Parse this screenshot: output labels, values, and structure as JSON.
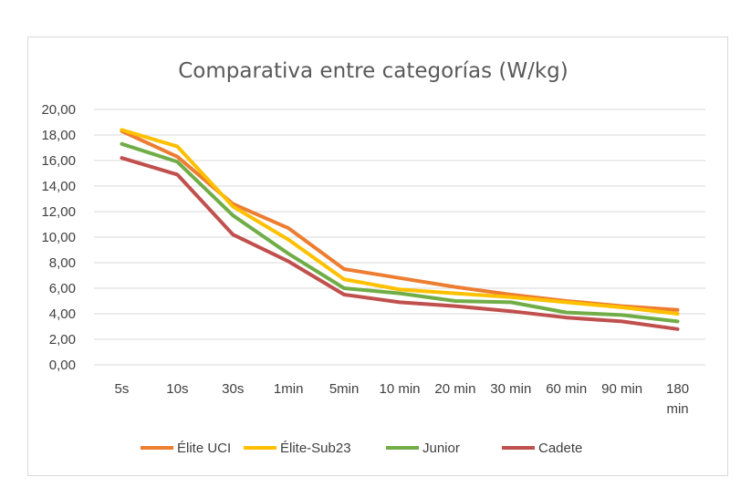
{
  "chart_data": {
    "type": "line",
    "title": "Comparativa entre categorías (W/kg)",
    "xlabel": "",
    "ylabel": "",
    "ylim": [
      0,
      20
    ],
    "y_step": 2,
    "y_tick_labels": [
      "0,00",
      "2,00",
      "4,00",
      "6,00",
      "8,00",
      "10,00",
      "12,00",
      "14,00",
      "16,00",
      "18,00",
      "20,00"
    ],
    "categories": [
      "5s",
      "10s",
      "30s",
      "1min",
      "5min",
      "10 min",
      "20 min",
      "30 min",
      "60 min",
      "90 min",
      "180 min"
    ],
    "grid": true,
    "legend_position": "bottom",
    "series": [
      {
        "name": "Élite UCI",
        "color": "#ED7D31",
        "values": [
          18.3,
          16.3,
          12.6,
          10.7,
          7.5,
          6.8,
          6.1,
          5.5,
          5.0,
          4.6,
          4.3
        ]
      },
      {
        "name": "Élite-Sub23",
        "color": "#FFC000",
        "values": [
          18.4,
          17.1,
          12.4,
          9.8,
          6.7,
          5.9,
          5.6,
          5.3,
          4.9,
          4.5,
          4.0
        ]
      },
      {
        "name": "Junior",
        "color": "#70AD47",
        "values": [
          17.3,
          15.9,
          11.7,
          8.7,
          6.0,
          5.6,
          5.0,
          4.9,
          4.1,
          3.9,
          3.4
        ]
      },
      {
        "name": "Cadete",
        "color": "#C0504D",
        "values": [
          16.2,
          14.9,
          10.2,
          8.1,
          5.5,
          4.9,
          4.6,
          4.2,
          3.7,
          3.4,
          2.8
        ]
      }
    ]
  }
}
